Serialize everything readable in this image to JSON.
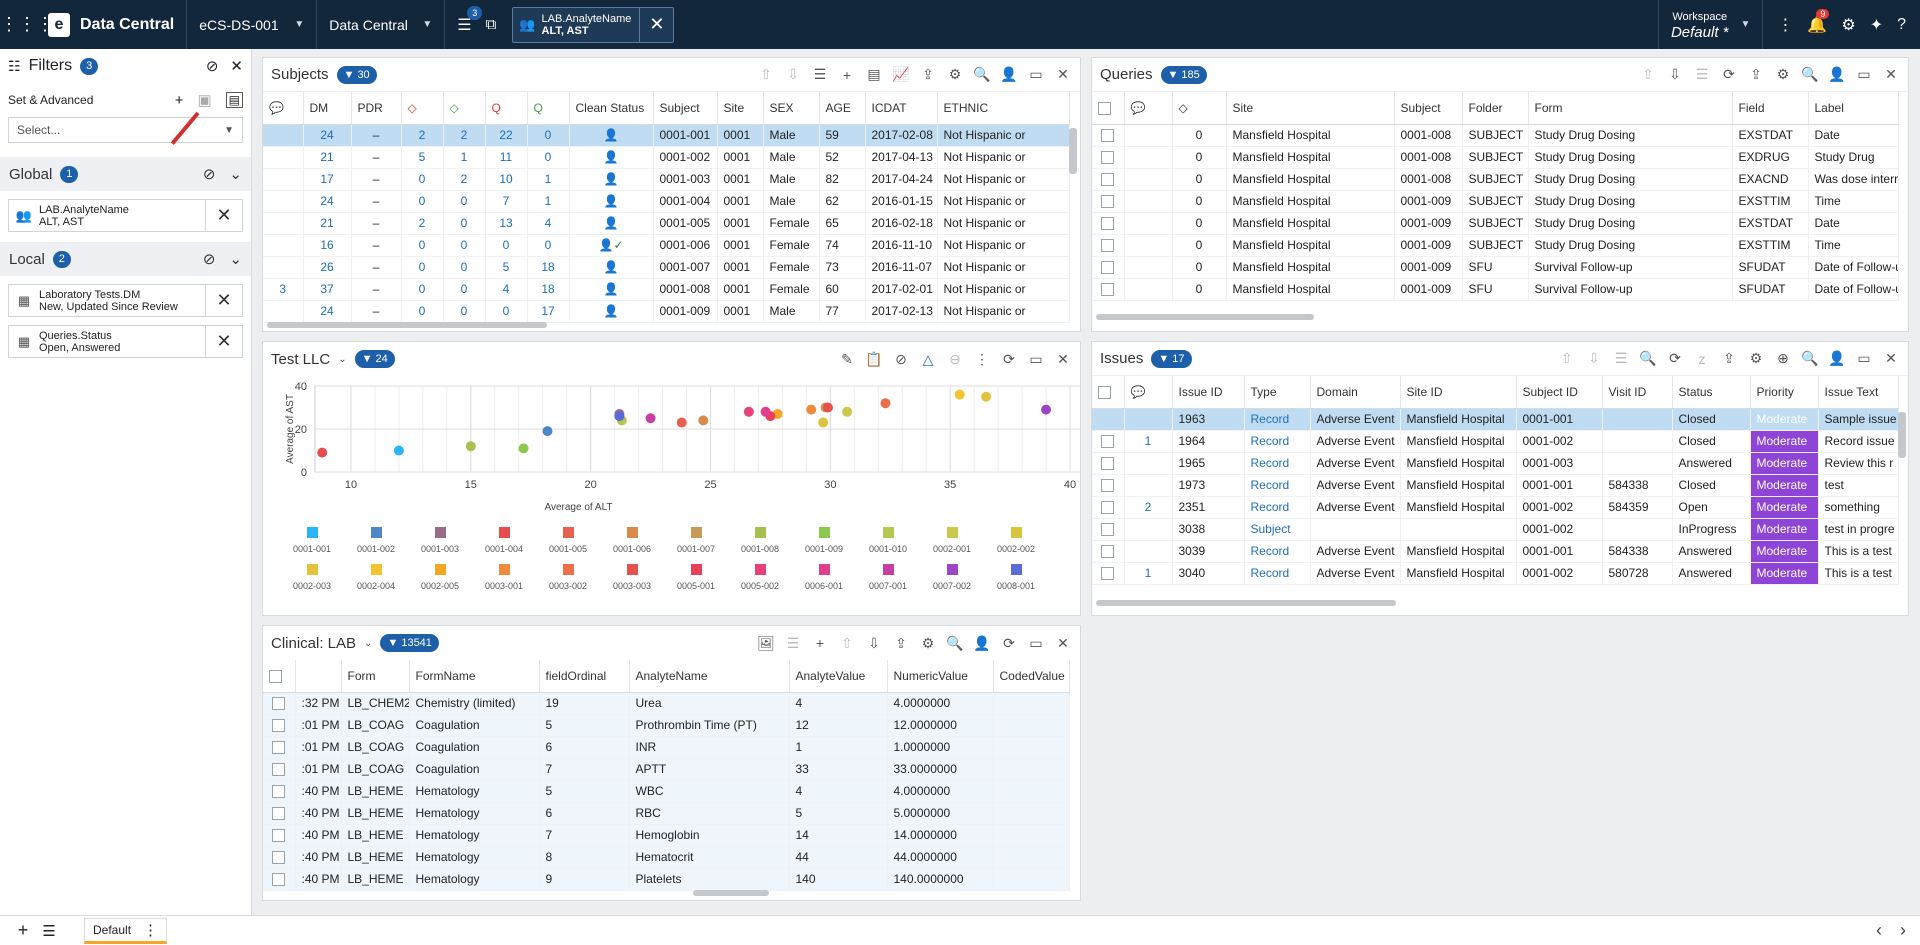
{
  "topbar": {
    "app_title": "Data Central",
    "study": "eCS-DS-001",
    "module": "Data Central",
    "filter_count": "3",
    "active_filter_name": "LAB.AnalyteName",
    "active_filter_value": "ALT, AST",
    "workspace_label": "Workspace",
    "workspace_name": "Default",
    "workspace_star": "*",
    "notif_count": "9"
  },
  "sidebar": {
    "title": "Filters",
    "count": "3",
    "set_label": "Set & Advanced",
    "select_placeholder": "Select...",
    "global_label": "Global",
    "global_count": "1",
    "global_chip": {
      "name": "LAB.AnalyteName",
      "value": "ALT, AST"
    },
    "local_label": "Local",
    "local_count": "2",
    "local_chips": [
      {
        "name": "Laboratory Tests.DM",
        "value": "New, Updated Since Review"
      },
      {
        "name": "Queries.Status",
        "value": "Open, Answered"
      }
    ]
  },
  "subjects": {
    "title": "Subjects",
    "count": "30",
    "columns": [
      "DM",
      "PDR",
      "",
      "",
      "",
      "",
      "Clean Status",
      "Subject",
      "Site",
      "SEX",
      "AGE",
      "ICDAT",
      "ETHNIC"
    ],
    "rows": [
      {
        "c": "",
        "dm": "24",
        "pdr": "–",
        "a": "2",
        "b": "2",
        "q1": "22",
        "q2": "0",
        "subject": "0001-001",
        "site": "0001",
        "sex": "Male",
        "age": "59",
        "icdat": "2017-02-08",
        "ethnic": "Not Hispanic or"
      },
      {
        "c": "",
        "dm": "21",
        "pdr": "–",
        "a": "5",
        "b": "1",
        "q1": "11",
        "q2": "0",
        "subject": "0001-002",
        "site": "0001",
        "sex": "Male",
        "age": "52",
        "icdat": "2017-04-13",
        "ethnic": "Not Hispanic or"
      },
      {
        "c": "",
        "dm": "17",
        "pdr": "–",
        "a": "0",
        "b": "2",
        "q1": "10",
        "q2": "1",
        "subject": "0001-003",
        "site": "0001",
        "sex": "Male",
        "age": "82",
        "icdat": "2017-04-24",
        "ethnic": "Not Hispanic or"
      },
      {
        "c": "",
        "dm": "24",
        "pdr": "–",
        "a": "0",
        "b": "0",
        "q1": "7",
        "q2": "1",
        "subject": "0001-004",
        "site": "0001",
        "sex": "Male",
        "age": "62",
        "icdat": "2016-01-15",
        "ethnic": "Not Hispanic or"
      },
      {
        "c": "",
        "dm": "21",
        "pdr": "–",
        "a": "2",
        "b": "0",
        "q1": "13",
        "q2": "4",
        "subject": "0001-005",
        "site": "0001",
        "sex": "Female",
        "age": "65",
        "icdat": "2016-02-18",
        "ethnic": "Not Hispanic or"
      },
      {
        "c": "",
        "dm": "16",
        "pdr": "–",
        "a": "0",
        "b": "0",
        "q1": "0",
        "q2": "0",
        "subject": "0001-006",
        "site": "0001",
        "sex": "Female",
        "age": "74",
        "icdat": "2016-11-10",
        "ethnic": "Not Hispanic or"
      },
      {
        "c": "",
        "dm": "26",
        "pdr": "–",
        "a": "0",
        "b": "0",
        "q1": "5",
        "q2": "18",
        "subject": "0001-007",
        "site": "0001",
        "sex": "Female",
        "age": "73",
        "icdat": "2016-11-07",
        "ethnic": "Not Hispanic or"
      },
      {
        "c": "3",
        "dm": "37",
        "pdr": "–",
        "a": "0",
        "b": "0",
        "q1": "4",
        "q2": "18",
        "subject": "0001-008",
        "site": "0001",
        "sex": "Female",
        "age": "60",
        "icdat": "2017-02-01",
        "ethnic": "Not Hispanic or"
      },
      {
        "c": "",
        "dm": "24",
        "pdr": "–",
        "a": "0",
        "b": "0",
        "q1": "0",
        "q2": "17",
        "subject": "0001-009",
        "site": "0001",
        "sex": "Male",
        "age": "77",
        "icdat": "2017-02-13",
        "ethnic": "Not Hispanic or"
      }
    ]
  },
  "queries": {
    "title": "Queries",
    "count": "185",
    "columns": [
      "",
      "",
      "Site",
      "Subject",
      "Folder",
      "Form",
      "Field",
      "Label"
    ],
    "rows": [
      {
        "n": "0",
        "site": "Mansfield Hospital",
        "subject": "0001-008",
        "folder": "SUBJECT",
        "form": "Study Drug Dosing",
        "field": "EXSTDAT",
        "label": "Date"
      },
      {
        "n": "0",
        "site": "Mansfield Hospital",
        "subject": "0001-008",
        "folder": "SUBJECT",
        "form": "Study Drug Dosing",
        "field": "EXDRUG",
        "label": "Study Drug"
      },
      {
        "n": "0",
        "site": "Mansfield Hospital",
        "subject": "0001-008",
        "folder": "SUBJECT",
        "form": "Study Drug Dosing",
        "field": "EXACND",
        "label": "Was dose interru"
      },
      {
        "n": "0",
        "site": "Mansfield Hospital",
        "subject": "0001-009",
        "folder": "SUBJECT",
        "form": "Study Drug Dosing",
        "field": "EXSTTIM",
        "label": "Time"
      },
      {
        "n": "0",
        "site": "Mansfield Hospital",
        "subject": "0001-009",
        "folder": "SUBJECT",
        "form": "Study Drug Dosing",
        "field": "EXSTDAT",
        "label": "Date"
      },
      {
        "n": "0",
        "site": "Mansfield Hospital",
        "subject": "0001-009",
        "folder": "SUBJECT",
        "form": "Study Drug Dosing",
        "field": "EXSTTIM",
        "label": "Time"
      },
      {
        "n": "0",
        "site": "Mansfield Hospital",
        "subject": "0001-009",
        "folder": "SFU",
        "form": "Survival Follow-up",
        "field": "SFUDAT",
        "label": "Date of Follow-u"
      },
      {
        "n": "0",
        "site": "Mansfield Hospital",
        "subject": "0001-009",
        "folder": "SFU",
        "form": "Survival Follow-up",
        "field": "SFUDAT",
        "label": "Date of Follow-u"
      }
    ]
  },
  "issues": {
    "title": "Issues",
    "count": "17",
    "columns": [
      "",
      "",
      "Issue ID",
      "Type",
      "Domain",
      "Site ID",
      "Subject ID",
      "Visit ID",
      "Status",
      "Priority",
      "Issue Text"
    ],
    "rows": [
      {
        "c": "",
        "id": "1963",
        "type": "Record",
        "domain": "Adverse Event",
        "site": "Mansfield Hospital",
        "subject": "0001-001",
        "visit": "",
        "status": "Closed",
        "priority": "Moderate",
        "text": "Sample issue"
      },
      {
        "c": "1",
        "id": "1964",
        "type": "Record",
        "domain": "Adverse Event",
        "site": "Mansfield Hospital",
        "subject": "0001-002",
        "visit": "",
        "status": "Closed",
        "priority": "Moderate",
        "text": "Record issue"
      },
      {
        "c": "",
        "id": "1965",
        "type": "Record",
        "domain": "Adverse Event",
        "site": "Mansfield Hospital",
        "subject": "0001-003",
        "visit": "",
        "status": "Answered",
        "priority": "Moderate",
        "text": "Review this r"
      },
      {
        "c": "",
        "id": "1973",
        "type": "Record",
        "domain": "Adverse Event",
        "site": "Mansfield Hospital",
        "subject": "0001-001",
        "visit": "584338",
        "status": "Closed",
        "priority": "Moderate",
        "text": "test"
      },
      {
        "c": "2",
        "id": "2351",
        "type": "Record",
        "domain": "Adverse Event",
        "site": "Mansfield Hospital",
        "subject": "0001-002",
        "visit": "584359",
        "status": "Open",
        "priority": "Moderate",
        "text": "something"
      },
      {
        "c": "",
        "id": "3038",
        "type": "Subject",
        "domain": "",
        "site": "",
        "subject": "0001-002",
        "visit": "",
        "status": "InProgress",
        "priority": "Moderate",
        "text": "test in progre"
      },
      {
        "c": "",
        "id": "3039",
        "type": "Record",
        "domain": "Adverse Event",
        "site": "Mansfield Hospital",
        "subject": "0001-001",
        "visit": "584338",
        "status": "Answered",
        "priority": "Moderate",
        "text": "This is a test"
      },
      {
        "c": "1",
        "id": "3040",
        "type": "Record",
        "domain": "Adverse Event",
        "site": "Mansfield Hospital",
        "subject": "0001-002",
        "visit": "580728",
        "status": "Answered",
        "priority": "Moderate",
        "text": "This is a test"
      }
    ]
  },
  "llc": {
    "title": "Test LLC",
    "count": "24"
  },
  "chart_data": {
    "type": "scatter",
    "title": "",
    "xlabel": "Average of ALT",
    "ylabel": "Average of AST",
    "xlim": [
      8.5,
      40.5
    ],
    "ylim": [
      0,
      40
    ],
    "xticks": [
      10,
      15,
      20,
      25,
      30,
      35,
      40
    ],
    "yticks": [
      0,
      20,
      40
    ],
    "grid": true,
    "legend": "bottom",
    "series": [
      {
        "name": "0001-001",
        "color": "#29b6f6",
        "x": 12.0,
        "y": 10
      },
      {
        "name": "0001-002",
        "color": "#4f86c6",
        "x": 18.2,
        "y": 19
      },
      {
        "name": "0001-003",
        "color": "#9c6b8a",
        "x": 21.2,
        "y": 27
      },
      {
        "name": "0001-004",
        "color": "#e84c4c",
        "x": 8.8,
        "y": 9
      },
      {
        "name": "0001-005",
        "color": "#e86050",
        "x": 23.8,
        "y": 23
      },
      {
        "name": "0001-006",
        "color": "#d98a4a",
        "x": 24.7,
        "y": 24
      },
      {
        "name": "0001-007",
        "color": "#c79a5a",
        "x": 29.8,
        "y": 30
      },
      {
        "name": "0001-008",
        "color": "#a8c050",
        "x": 15.0,
        "y": 12
      },
      {
        "name": "0001-009",
        "color": "#8cc84b",
        "x": 17.2,
        "y": 11
      },
      {
        "name": "0001-010",
        "color": "#b2c94e",
        "x": 21.3,
        "y": 24
      },
      {
        "name": "0002-001",
        "color": "#c9c84a",
        "x": 30.7,
        "y": 28
      },
      {
        "name": "0002-002",
        "color": "#d9c43c",
        "x": 29.7,
        "y": 23
      },
      {
        "name": "0002-003",
        "color": "#e2c23a",
        "x": 36.5,
        "y": 35
      },
      {
        "name": "0002-004",
        "color": "#f2c430",
        "x": 35.4,
        "y": 36
      },
      {
        "name": "0002-005",
        "color": "#f5a623",
        "x": 27.8,
        "y": 27
      },
      {
        "name": "0003-001",
        "color": "#f08a3c",
        "x": 29.2,
        "y": 29
      },
      {
        "name": "0003-002",
        "color": "#ef6e4a",
        "x": 32.3,
        "y": 32
      },
      {
        "name": "0003-003",
        "color": "#e8504e",
        "x": 29.9,
        "y": 30
      },
      {
        "name": "0005-001",
        "color": "#ea3f5a",
        "x": 27.5,
        "y": 26
      },
      {
        "name": "0005-002",
        "color": "#e9407a",
        "x": 26.6,
        "y": 28
      },
      {
        "name": "0006-001",
        "color": "#e43f8c",
        "x": 27.3,
        "y": 28
      },
      {
        "name": "0007-001",
        "color": "#c83fa4",
        "x": 22.5,
        "y": 25
      },
      {
        "name": "0007-002",
        "color": "#9b45c4",
        "x": 39.0,
        "y": 29
      },
      {
        "name": "0008-001",
        "color": "#5a6ad6",
        "x": 21.2,
        "y": 26
      }
    ]
  },
  "lab": {
    "title": "Clinical: LAB",
    "count": "13541",
    "columns": [
      "",
      "",
      "Form",
      "FormName",
      "fieldOrdinal",
      "AnalyteName",
      "AnalyteValue",
      "NumericValue",
      "CodedValue"
    ],
    "rows": [
      {
        "t": ":32 PM",
        "form": "LB_CHEM2",
        "fname": "Chemistry (limited)",
        "ord": "19",
        "analyte": "Urea",
        "val": "4",
        "num": "4.0000000"
      },
      {
        "t": ":01 PM",
        "form": "LB_COAG",
        "fname": "Coagulation",
        "ord": "5",
        "analyte": "Prothrombin Time (PT)",
        "val": "12",
        "num": "12.0000000"
      },
      {
        "t": ":01 PM",
        "form": "LB_COAG",
        "fname": "Coagulation",
        "ord": "6",
        "analyte": "INR",
        "val": "1",
        "num": "1.0000000"
      },
      {
        "t": ":01 PM",
        "form": "LB_COAG",
        "fname": "Coagulation",
        "ord": "7",
        "analyte": "APTT",
        "val": "33",
        "num": "33.0000000"
      },
      {
        "t": ":40 PM",
        "form": "LB_HEME",
        "fname": "Hematology",
        "ord": "5",
        "analyte": "WBC",
        "val": "4",
        "num": "4.0000000"
      },
      {
        "t": ":40 PM",
        "form": "LB_HEME",
        "fname": "Hematology",
        "ord": "6",
        "analyte": "RBC",
        "val": "5",
        "num": "5.0000000"
      },
      {
        "t": ":40 PM",
        "form": "LB_HEME",
        "fname": "Hematology",
        "ord": "7",
        "analyte": "Hemoglobin",
        "val": "14",
        "num": "14.0000000"
      },
      {
        "t": ":40 PM",
        "form": "LB_HEME",
        "fname": "Hematology",
        "ord": "8",
        "analyte": "Hematocrit",
        "val": "44",
        "num": "44.0000000"
      },
      {
        "t": ":40 PM",
        "form": "LB_HEME",
        "fname": "Hematology",
        "ord": "9",
        "analyte": "Platelets",
        "val": "140",
        "num": "140.0000000"
      }
    ]
  },
  "bottombar": {
    "tab_label": "Default"
  }
}
